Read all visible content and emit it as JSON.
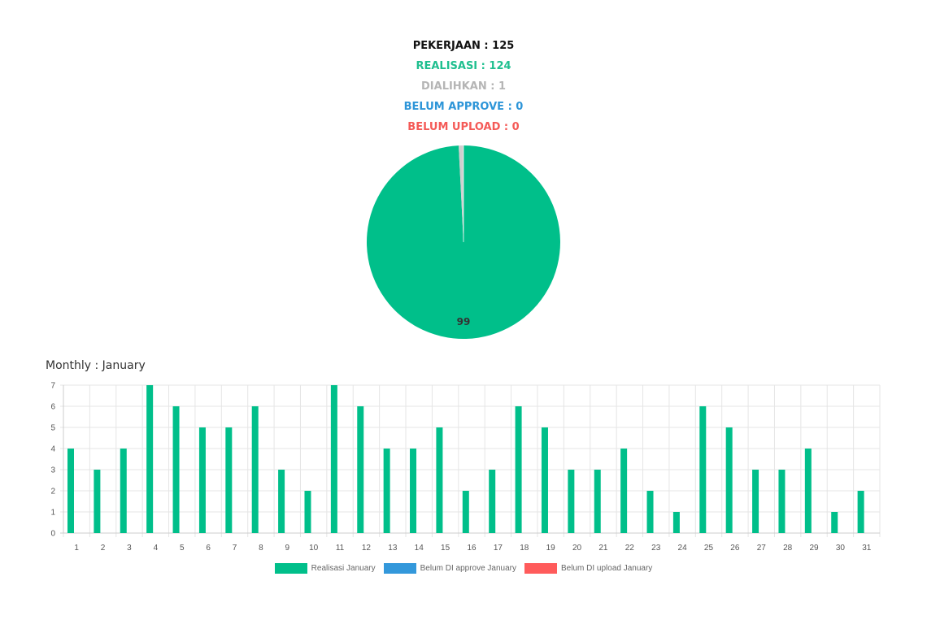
{
  "summary": {
    "pekerjaan": "PEKERJAAN : 125",
    "realisasi": "REALISASI : 124",
    "dialihkan": "DIALIHKAN : 1",
    "belum_approve": "BELUM APPROVE : 0",
    "belum_upload": "BELUM UPLOAD : 0"
  },
  "monthly_title": "Monthly : January",
  "colors": {
    "realisasi": "#00bf8a",
    "dialihkan": "#cfcfcf",
    "belum_approve": "#3398db",
    "belum_upload": "#ff5b5b",
    "grid": "#e5e5e5",
    "axis": "#cccccc"
  },
  "chart_data": [
    {
      "type": "pie",
      "slices": [
        {
          "value": 124,
          "color": "#00bf8a"
        },
        {
          "value": 1,
          "color": "#cfcfcf"
        },
        {
          "value": 0,
          "color": "#3398db"
        },
        {
          "value": 0,
          "color": "#ff5b5b"
        }
      ],
      "data_label": "99"
    },
    {
      "type": "bar",
      "title": "Monthly : January",
      "categories": [
        "1",
        "2",
        "3",
        "4",
        "5",
        "6",
        "7",
        "8",
        "9",
        "10",
        "11",
        "12",
        "13",
        "14",
        "15",
        "16",
        "17",
        "18",
        "19",
        "20",
        "21",
        "22",
        "23",
        "24",
        "25",
        "26",
        "27",
        "28",
        "29",
        "30",
        "31"
      ],
      "series": [
        {
          "name": "Realisasi January",
          "color": "#00bf8a",
          "values": [
            4,
            3,
            4,
            7,
            6,
            5,
            5,
            6,
            3,
            2,
            7,
            6,
            4,
            4,
            5,
            2,
            3,
            6,
            5,
            3,
            3,
            4,
            2,
            1,
            6,
            5,
            3,
            3,
            4,
            1,
            2
          ]
        },
        {
          "name": "Belum DI approve January",
          "color": "#3398db",
          "values": [
            0,
            0,
            0,
            0,
            0,
            0,
            0,
            0,
            0,
            0,
            0,
            0,
            0,
            0,
            0,
            0,
            0,
            0,
            0,
            0,
            0,
            0,
            0,
            0,
            0,
            0,
            0,
            0,
            0,
            0,
            0
          ]
        },
        {
          "name": "Belum DI upload January",
          "color": "#ff5b5b",
          "values": [
            0,
            0,
            0,
            0,
            0,
            0,
            0,
            0,
            0,
            0,
            0,
            0,
            0,
            0,
            0,
            0,
            0,
            0,
            0,
            0,
            0,
            0,
            0,
            0,
            0,
            0,
            0,
            0,
            0,
            0,
            0
          ]
        }
      ],
      "ylim": [
        0,
        7
      ],
      "yticks": [
        0,
        1,
        2,
        3,
        4,
        5,
        6,
        7
      ],
      "grid": true,
      "legend_position": "bottom"
    }
  ]
}
